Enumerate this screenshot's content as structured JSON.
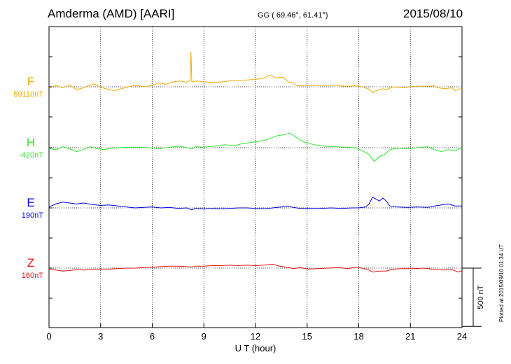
{
  "header": {
    "station": "Amderma (AMD)  [AARI]",
    "coords": "GG ( 69.46°,  61.41°)",
    "date": "2015/08/10"
  },
  "side_note": "Plotted at 2015/09/10 01:34 UT",
  "chart_data": {
    "type": "line",
    "xlabel": "U T (hour)",
    "xlim": [
      0,
      24
    ],
    "xticks": [
      0,
      3,
      6,
      9,
      12,
      15,
      18,
      21,
      24
    ],
    "grid": true,
    "scale_bar": "500 nT",
    "scale_nT": 500,
    "units_per_px": 1.43,
    "series": [
      {
        "name": "F",
        "baseline": "59110nT",
        "color": "#f0a800",
        "points": [
          [
            0,
            -3
          ],
          [
            0.4,
            3
          ],
          [
            0.8,
            -2
          ],
          [
            1.2,
            4
          ],
          [
            1.6,
            -6
          ],
          [
            2.0,
            -2
          ],
          [
            2.6,
            6
          ],
          [
            3.2,
            -3
          ],
          [
            3.8,
            -8
          ],
          [
            4.4,
            -2
          ],
          [
            5.0,
            3
          ],
          [
            5.6,
            0
          ],
          [
            6.0,
            3
          ],
          [
            6.4,
            8
          ],
          [
            6.8,
            5
          ],
          [
            7.2,
            10
          ],
          [
            7.6,
            12
          ],
          [
            8.0,
            9
          ],
          [
            8.2,
            14
          ],
          [
            8.25,
            72
          ],
          [
            8.3,
            10
          ],
          [
            8.6,
            12
          ],
          [
            9.0,
            10
          ],
          [
            9.5,
            9
          ],
          [
            10,
            10
          ],
          [
            10.5,
            12
          ],
          [
            11,
            13
          ],
          [
            11.5,
            14
          ],
          [
            12,
            15
          ],
          [
            12.5,
            18
          ],
          [
            12.8,
            24
          ],
          [
            13.2,
            18
          ],
          [
            13.6,
            20
          ],
          [
            13.9,
            10
          ],
          [
            14.2,
            8
          ],
          [
            14.4,
            2
          ],
          [
            14.8,
            3
          ],
          [
            15.4,
            3
          ],
          [
            16,
            3
          ],
          [
            16.6,
            3
          ],
          [
            17.2,
            1
          ],
          [
            17.8,
            2
          ],
          [
            18.2,
            0
          ],
          [
            18.6,
            -5
          ],
          [
            18.8,
            -12
          ],
          [
            19.0,
            -8
          ],
          [
            19.4,
            -4
          ],
          [
            19.6,
            -6
          ],
          [
            20,
            0
          ],
          [
            20.6,
            -2
          ],
          [
            21.2,
            1
          ],
          [
            21.8,
            1
          ],
          [
            22.4,
            2
          ],
          [
            22.6,
            -2
          ],
          [
            23,
            -4
          ],
          [
            23.4,
            -2
          ],
          [
            23.6,
            -8
          ],
          [
            24,
            -3
          ]
        ]
      },
      {
        "name": "H",
        "baseline": "-420nT",
        "color": "#2fe32f",
        "points": [
          [
            0,
            -2
          ],
          [
            0.4,
            -4
          ],
          [
            0.8,
            2
          ],
          [
            1.2,
            -2
          ],
          [
            1.6,
            -8
          ],
          [
            2.0,
            -4
          ],
          [
            2.4,
            2
          ],
          [
            2.8,
            -2
          ],
          [
            3.2,
            -4
          ],
          [
            3.6,
            -1
          ],
          [
            4.0,
            0
          ],
          [
            4.6,
            1
          ],
          [
            5.2,
            1
          ],
          [
            5.8,
            0
          ],
          [
            6.4,
            -2
          ],
          [
            7.0,
            1
          ],
          [
            7.6,
            3
          ],
          [
            8.0,
            0
          ],
          [
            8.3,
            -3
          ],
          [
            8.5,
            2
          ],
          [
            9.0,
            1
          ],
          [
            9.6,
            3
          ],
          [
            10.2,
            6
          ],
          [
            10.8,
            4
          ],
          [
            11.2,
            8
          ],
          [
            11.6,
            10
          ],
          [
            12.0,
            12
          ],
          [
            12.4,
            14
          ],
          [
            12.8,
            18
          ],
          [
            13.2,
            24
          ],
          [
            13.6,
            26
          ],
          [
            14.0,
            30
          ],
          [
            14.4,
            20
          ],
          [
            14.8,
            12
          ],
          [
            15.4,
            6
          ],
          [
            16.0,
            3
          ],
          [
            16.6,
            2
          ],
          [
            17.2,
            1
          ],
          [
            17.8,
            0
          ],
          [
            18.2,
            -6
          ],
          [
            18.6,
            -14
          ],
          [
            18.9,
            -28
          ],
          [
            19.2,
            -18
          ],
          [
            19.5,
            -14
          ],
          [
            19.8,
            -4
          ],
          [
            20.2,
            -1
          ],
          [
            20.8,
            -2
          ],
          [
            21.4,
            0
          ],
          [
            22,
            2
          ],
          [
            22.4,
            -4
          ],
          [
            22.8,
            -8
          ],
          [
            23.2,
            -4
          ],
          [
            23.6,
            -6
          ],
          [
            24,
            0
          ]
        ]
      },
      {
        "name": "E",
        "baseline": "190nT",
        "color": "#0000dd",
        "points": [
          [
            0,
            2
          ],
          [
            0.4,
            8
          ],
          [
            0.8,
            12
          ],
          [
            1.2,
            10
          ],
          [
            1.6,
            8
          ],
          [
            2.0,
            10
          ],
          [
            2.5,
            7
          ],
          [
            3.0,
            5
          ],
          [
            3.5,
            6
          ],
          [
            4.0,
            4
          ],
          [
            4.5,
            2
          ],
          [
            5.0,
            0
          ],
          [
            5.5,
            1
          ],
          [
            6.0,
            2
          ],
          [
            6.5,
            0
          ],
          [
            7.0,
            1
          ],
          [
            7.5,
            -1
          ],
          [
            8.0,
            0
          ],
          [
            8.3,
            -4
          ],
          [
            8.5,
            -1
          ],
          [
            9.0,
            -2
          ],
          [
            9.5,
            -1
          ],
          [
            10,
            -2
          ],
          [
            10.5,
            -1
          ],
          [
            11,
            0
          ],
          [
            11.5,
            0
          ],
          [
            12,
            -1
          ],
          [
            12.5,
            -2
          ],
          [
            13,
            0
          ],
          [
            13.5,
            2
          ],
          [
            13.8,
            4
          ],
          [
            14.2,
            1
          ],
          [
            14.6,
            -1
          ],
          [
            15.2,
            -1
          ],
          [
            15.8,
            -1
          ],
          [
            16.4,
            0
          ],
          [
            17,
            -1
          ],
          [
            17.6,
            0
          ],
          [
            18.0,
            0
          ],
          [
            18.4,
            2
          ],
          [
            18.6,
            8
          ],
          [
            18.8,
            22
          ],
          [
            19.0,
            18
          ],
          [
            19.2,
            14
          ],
          [
            19.4,
            20
          ],
          [
            19.6,
            14
          ],
          [
            19.8,
            4
          ],
          [
            20.2,
            2
          ],
          [
            20.8,
            1
          ],
          [
            21.4,
            2
          ],
          [
            22,
            1
          ],
          [
            22.4,
            4
          ],
          [
            22.8,
            6
          ],
          [
            23.2,
            8
          ],
          [
            23.6,
            4
          ],
          [
            24,
            4
          ]
        ]
      },
      {
        "name": "Z",
        "baseline": "160nT",
        "color": "#e81010",
        "points": [
          [
            0,
            -2
          ],
          [
            0.4,
            -4
          ],
          [
            0.8,
            -6
          ],
          [
            1.2,
            -5
          ],
          [
            1.6,
            -3
          ],
          [
            2.0,
            -4
          ],
          [
            2.5,
            -3
          ],
          [
            3.0,
            -2
          ],
          [
            3.5,
            -2
          ],
          [
            4.0,
            -1
          ],
          [
            4.5,
            0
          ],
          [
            5.0,
            0
          ],
          [
            5.5,
            1
          ],
          [
            6.0,
            2
          ],
          [
            6.5,
            3
          ],
          [
            7.0,
            4
          ],
          [
            7.5,
            4
          ],
          [
            8.0,
            3
          ],
          [
            8.3,
            2
          ],
          [
            8.5,
            4
          ],
          [
            9.0,
            4
          ],
          [
            9.5,
            5
          ],
          [
            10,
            5
          ],
          [
            10.5,
            6
          ],
          [
            11,
            5
          ],
          [
            11.5,
            6
          ],
          [
            12,
            5
          ],
          [
            12.5,
            6
          ],
          [
            13,
            8
          ],
          [
            13.4,
            4
          ],
          [
            13.8,
            2
          ],
          [
            14.2,
            -1
          ],
          [
            14.6,
            1
          ],
          [
            15.0,
            -2
          ],
          [
            15.6,
            -1
          ],
          [
            16.2,
            0
          ],
          [
            16.8,
            1
          ],
          [
            17.4,
            -1
          ],
          [
            17.8,
            2
          ],
          [
            18.2,
            0
          ],
          [
            18.6,
            -4
          ],
          [
            18.8,
            -8
          ],
          [
            19.2,
            -6
          ],
          [
            19.6,
            -6
          ],
          [
            20.0,
            -2
          ],
          [
            20.6,
            -1
          ],
          [
            21.2,
            -1
          ],
          [
            21.8,
            0
          ],
          [
            22.4,
            -3
          ],
          [
            23.0,
            -4
          ],
          [
            23.4,
            -3
          ],
          [
            23.8,
            -8
          ],
          [
            24,
            -5
          ]
        ]
      }
    ]
  }
}
